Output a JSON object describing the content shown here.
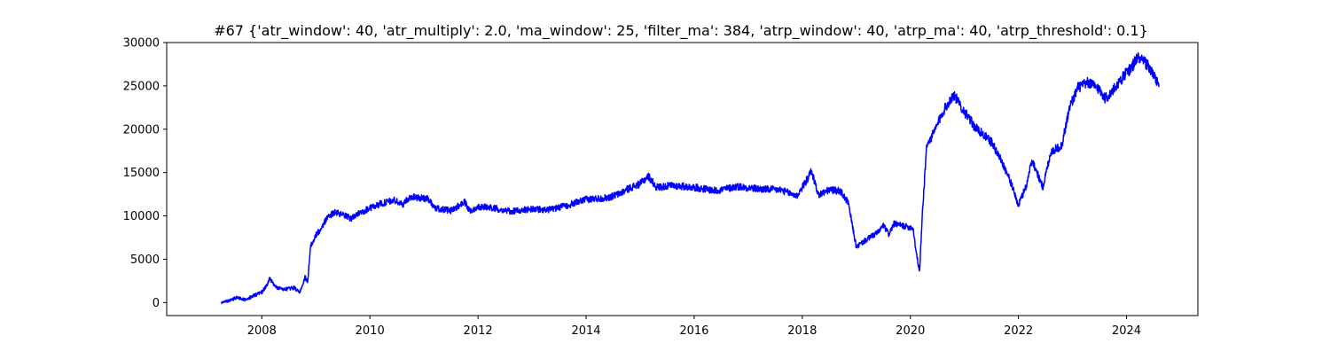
{
  "chart_data": {
    "type": "line",
    "title": "#67 {'atr_window': 40, 'atr_multiply': 2.0, 'ma_window': 25, 'filter_ma': 384, 'atrp_window': 40, 'atrp_ma': 40, 'atrp_threshold': 0.1}",
    "xlabel": "",
    "ylabel": "",
    "xlim": [
      2006.24,
      2025.32
    ],
    "ylim": [
      -1500,
      30000
    ],
    "x_ticks": [
      2008,
      2010,
      2012,
      2014,
      2016,
      2018,
      2020,
      2022,
      2024
    ],
    "y_ticks": [
      0,
      5000,
      10000,
      15000,
      20000,
      25000,
      30000
    ],
    "grid": false,
    "line_color": "#0000ff",
    "series": [
      {
        "values": [
          [
            2007.25,
            0
          ],
          [
            2007.4,
            250
          ],
          [
            2007.55,
            600
          ],
          [
            2007.7,
            300
          ],
          [
            2007.85,
            800
          ],
          [
            2008.0,
            1200
          ],
          [
            2008.1,
            2000
          ],
          [
            2008.15,
            2800
          ],
          [
            2008.25,
            1800
          ],
          [
            2008.4,
            1500
          ],
          [
            2008.6,
            1700
          ],
          [
            2008.7,
            1200
          ],
          [
            2008.8,
            2900
          ],
          [
            2008.85,
            2300
          ],
          [
            2008.9,
            6500
          ],
          [
            2009.0,
            7800
          ],
          [
            2009.1,
            8500
          ],
          [
            2009.2,
            9800
          ],
          [
            2009.35,
            10400
          ],
          [
            2009.5,
            10100
          ],
          [
            2009.65,
            9700
          ],
          [
            2009.8,
            10300
          ],
          [
            2010.0,
            10900
          ],
          [
            2010.2,
            11400
          ],
          [
            2010.45,
            11800
          ],
          [
            2010.6,
            11300
          ],
          [
            2010.75,
            12200
          ],
          [
            2010.9,
            12100
          ],
          [
            2011.1,
            11900
          ],
          [
            2011.2,
            10900
          ],
          [
            2011.5,
            10600
          ],
          [
            2011.75,
            11600
          ],
          [
            2011.85,
            10500
          ],
          [
            2012.0,
            11100
          ],
          [
            2012.3,
            10900
          ],
          [
            2012.6,
            10500
          ],
          [
            2013.0,
            10800
          ],
          [
            2013.3,
            10700
          ],
          [
            2013.6,
            11100
          ],
          [
            2014.0,
            11900
          ],
          [
            2014.4,
            12100
          ],
          [
            2014.6,
            12500
          ],
          [
            2014.8,
            13200
          ],
          [
            2015.0,
            13700
          ],
          [
            2015.15,
            14600
          ],
          [
            2015.3,
            13300
          ],
          [
            2015.6,
            13500
          ],
          [
            2016.0,
            13300
          ],
          [
            2016.4,
            12900
          ],
          [
            2016.8,
            13400
          ],
          [
            2017.2,
            13100
          ],
          [
            2017.6,
            13000
          ],
          [
            2017.9,
            12300
          ],
          [
            2018.1,
            14300
          ],
          [
            2018.17,
            15200
          ],
          [
            2018.3,
            12400
          ],
          [
            2018.5,
            13000
          ],
          [
            2018.7,
            12900
          ],
          [
            2018.85,
            11500
          ],
          [
            2019.0,
            6400
          ],
          [
            2019.15,
            7100
          ],
          [
            2019.4,
            8100
          ],
          [
            2019.5,
            8900
          ],
          [
            2019.6,
            7900
          ],
          [
            2019.7,
            9100
          ],
          [
            2019.9,
            8800
          ],
          [
            2020.05,
            8600
          ],
          [
            2020.1,
            6200
          ],
          [
            2020.17,
            3500
          ],
          [
            2020.22,
            10000
          ],
          [
            2020.3,
            18000
          ],
          [
            2020.45,
            19800
          ],
          [
            2020.6,
            22000
          ],
          [
            2020.8,
            24000
          ],
          [
            2021.0,
            22000
          ],
          [
            2021.2,
            20200
          ],
          [
            2021.5,
            18500
          ],
          [
            2021.7,
            16200
          ],
          [
            2021.85,
            14000
          ],
          [
            2022.0,
            11200
          ],
          [
            2022.15,
            13600
          ],
          [
            2022.25,
            16500
          ],
          [
            2022.45,
            13300
          ],
          [
            2022.6,
            17400
          ],
          [
            2022.8,
            18100
          ],
          [
            2022.95,
            22600
          ],
          [
            2023.1,
            24800
          ],
          [
            2023.3,
            25400
          ],
          [
            2023.5,
            24600
          ],
          [
            2023.6,
            23600
          ],
          [
            2023.7,
            24000
          ],
          [
            2023.9,
            25800
          ],
          [
            2024.1,
            27200
          ],
          [
            2024.2,
            28300
          ],
          [
            2024.4,
            27400
          ],
          [
            2024.5,
            26100
          ],
          [
            2024.6,
            25200
          ]
        ]
      }
    ]
  }
}
